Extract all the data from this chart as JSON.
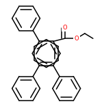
{
  "background": "#ffffff",
  "bond_color": "#000000",
  "bond_lw": 1.1,
  "dbo": 0.05,
  "ring_r": 0.195,
  "o_color": "#ff0000",
  "figsize": [
    1.52,
    1.52
  ],
  "dpi": 100,
  "xlim": [
    -0.72,
    0.72
  ],
  "ylim": [
    -0.72,
    0.72
  ]
}
